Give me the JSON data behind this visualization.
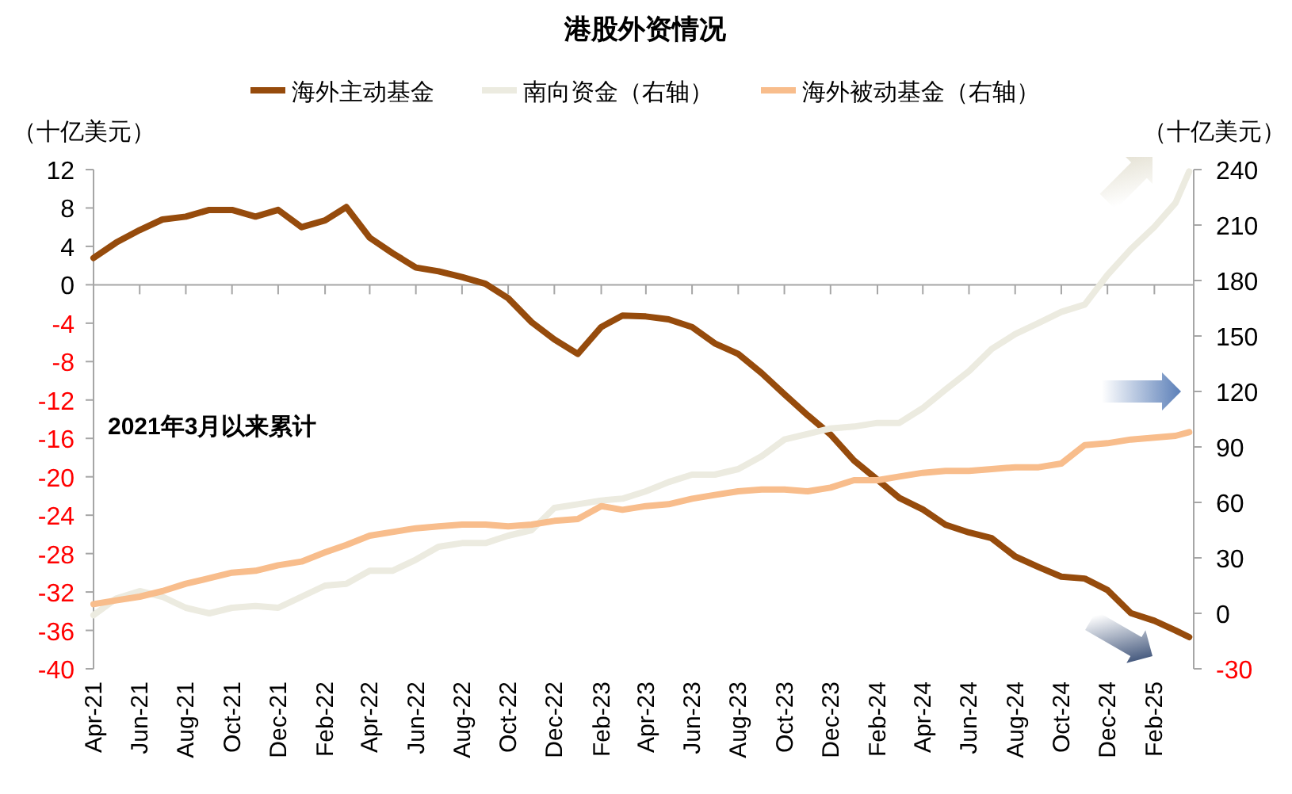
{
  "chart_data": {
    "type": "line",
    "title": "港股外资情况",
    "ylabel": "（十亿美元）",
    "y2label": "（十亿美元）",
    "annotations": [
      "2021年3月以来累计"
    ],
    "legend": "top",
    "marker": "none",
    "line_style": "solid",
    "x": [
      "2021-04",
      "2021-05",
      "2021-06",
      "2021-07",
      "2021-08",
      "2021-09",
      "2021-10",
      "2021-11",
      "2021-12",
      "2022-01",
      "2022-02",
      "2022-03",
      "2022-04",
      "2022-05",
      "2022-06",
      "2022-07",
      "2022-08",
      "2022-09",
      "2022-10",
      "2022-11",
      "2022-12",
      "2023-01",
      "2023-02",
      "2023-03",
      "2023-04",
      "2023-05",
      "2023-06",
      "2023-07",
      "2023-08",
      "2023-09",
      "2023-10",
      "2023-11",
      "2023-12",
      "2024-01",
      "2024-02",
      "2024-03",
      "2024-04",
      "2024-05",
      "2024-06",
      "2024-07",
      "2024-08",
      "2024-09",
      "2024-10",
      "2024-11",
      "2024-12",
      "2025-01",
      "2025-02",
      "2025-03",
      "2025-03-19"
    ],
    "xlim": [
      "2021-04-01",
      "2025-03-25"
    ],
    "xticks": [
      {
        "value": "2021-04",
        "label": "Apr-21"
      },
      {
        "value": "2021-06",
        "label": "Jun-21"
      },
      {
        "value": "2021-08",
        "label": "Aug-21"
      },
      {
        "value": "2021-10",
        "label": "Oct-21"
      },
      {
        "value": "2021-12",
        "label": "Dec-21"
      },
      {
        "value": "2022-02",
        "label": "Feb-22"
      },
      {
        "value": "2022-04",
        "label": "Apr-22"
      },
      {
        "value": "2022-06",
        "label": "Jun-22"
      },
      {
        "value": "2022-08",
        "label": "Aug-22"
      },
      {
        "value": "2022-10",
        "label": "Oct-22"
      },
      {
        "value": "2022-12",
        "label": "Dec-22"
      },
      {
        "value": "2023-02",
        "label": "Feb-23"
      },
      {
        "value": "2023-04",
        "label": "Apr-23"
      },
      {
        "value": "2023-06",
        "label": "Jun-23"
      },
      {
        "value": "2023-08",
        "label": "Aug-23"
      },
      {
        "value": "2023-10",
        "label": "Oct-23"
      },
      {
        "value": "2023-12",
        "label": "Dec-23"
      },
      {
        "value": "2024-02",
        "label": "Feb-24"
      },
      {
        "value": "2024-04",
        "label": "Apr-24"
      },
      {
        "value": "2024-06",
        "label": "Jun-24"
      },
      {
        "value": "2024-08",
        "label": "Aug-24"
      },
      {
        "value": "2024-10",
        "label": "Oct-24"
      },
      {
        "value": "2024-12",
        "label": "Dec-24"
      },
      {
        "value": "2025-02",
        "label": "Feb-25"
      }
    ],
    "ylim": [
      -40,
      12
    ],
    "yticks": [
      12,
      8,
      4,
      0,
      -4,
      -8,
      -12,
      -16,
      -20,
      -24,
      -28,
      -32,
      -36,
      -40
    ],
    "y2lim": [
      -30,
      240
    ],
    "y2ticks": [
      240,
      210,
      180,
      150,
      120,
      90,
      60,
      30,
      0,
      -30
    ],
    "series": [
      {
        "name": "海外主动基金",
        "color": "#964b0c",
        "values": [
          2.8,
          4.4,
          5.7,
          6.8,
          7.1,
          7.8,
          7.8,
          7.1,
          7.8,
          6.0,
          6.7,
          8.1,
          4.9,
          3.3,
          1.8,
          1.4,
          0.8,
          0.1,
          -1.4,
          -3.9,
          -5.7,
          -7.2,
          -4.4,
          -3.2,
          -3.3,
          -3.6,
          -4.4,
          -6.1,
          -7.2,
          -9.2,
          -11.4,
          -13.6,
          -15.6,
          -18.3,
          -20.3,
          -22.2,
          -23.4,
          -25.0,
          -25.8,
          -26.4,
          -28.3,
          -29.4,
          -30.4,
          -30.6,
          -31.8,
          -34.2,
          -35.0,
          -36.0,
          -36.7
        ]
      },
      {
        "name": "南向资金（右轴）",
        "color": "#ecebe0",
        "axis": "y2",
        "values": [
          -1,
          8,
          12,
          9,
          3,
          0,
          3,
          4,
          3,
          9,
          15,
          16,
          23,
          23,
          29,
          36,
          38,
          38,
          42,
          45,
          57,
          59,
          61,
          62,
          66,
          71,
          75,
          75,
          78,
          85,
          94,
          97,
          100,
          101,
          103,
          103,
          111,
          121,
          131,
          143,
          151,
          157,
          163,
          167,
          183,
          197,
          209,
          222,
          239
        ]
      },
      {
        "name": "海外被动基金（右轴）",
        "color": "#f8bd8c",
        "axis": "y2",
        "values": [
          5,
          7,
          9,
          12,
          16,
          19,
          22,
          23,
          26,
          28,
          33,
          37,
          42,
          44,
          46,
          47,
          48,
          48,
          47,
          48,
          50,
          51,
          58,
          56,
          58,
          59,
          62,
          64,
          66,
          67,
          67,
          66,
          68,
          72,
          72,
          74,
          76,
          77,
          77,
          78,
          79,
          79,
          81,
          91,
          92,
          94,
          95,
          96,
          98
        ]
      }
    ]
  }
}
